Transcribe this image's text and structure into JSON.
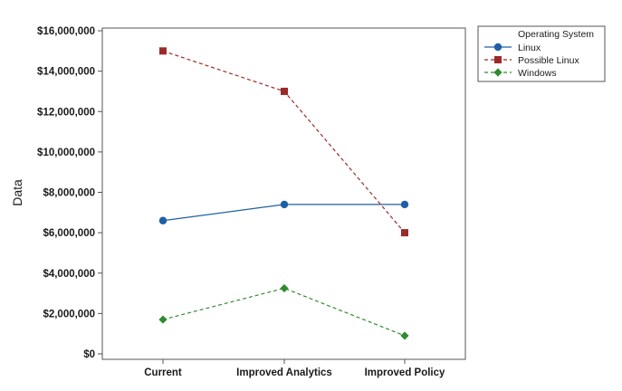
{
  "chart_data": {
    "type": "line",
    "title": "",
    "xlabel": "",
    "ylabel": "Data",
    "categories": [
      "Current",
      "Improved Analytics",
      "Improved Policy"
    ],
    "ylim": [
      0,
      16000000
    ],
    "y_ticks": [
      0,
      2000000,
      4000000,
      6000000,
      8000000,
      10000000,
      12000000,
      14000000,
      16000000
    ],
    "y_tick_labels": [
      "$0",
      "$2,000,000",
      "$4,000,000",
      "$6,000,000",
      "$8,000,000",
      "$10,000,000",
      "$12,000,000",
      "$14,000,000",
      "$16,000,000"
    ],
    "grid": false,
    "legend": {
      "title": "Operating System",
      "placement": "top-right outside"
    },
    "series": [
      {
        "name": "Linux",
        "values": [
          6600000,
          7400000,
          7400000
        ],
        "color": "#1f5fa6",
        "line_style": "solid",
        "marker": "circle"
      },
      {
        "name": "Possible Linux",
        "values": [
          15000000,
          13000000,
          6000000
        ],
        "color": "#9b2a2a",
        "line_style": "dashed",
        "marker": "square"
      },
      {
        "name": "Windows",
        "values": [
          1700000,
          3250000,
          900000
        ],
        "color": "#2e8b2e",
        "line_style": "dashed",
        "marker": "diamond"
      }
    ]
  }
}
